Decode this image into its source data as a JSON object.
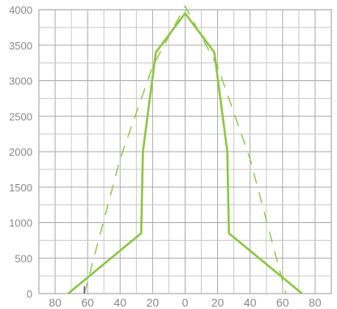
{
  "chart_data": {
    "type": "line",
    "title": "",
    "xlabel": "",
    "ylabel": "",
    "x_tick_labels": [
      "80",
      "60",
      "40",
      "20",
      "0",
      "20",
      "40",
      "60",
      "80"
    ],
    "y_tick_labels": [
      "0",
      "500",
      "1000",
      "1500",
      "2000",
      "2500",
      "3000",
      "3500",
      "4000"
    ],
    "xlim": [
      -90,
      90
    ],
    "ylim": [
      0,
      4000
    ],
    "grid": true,
    "legend": "none",
    "series": [
      {
        "style": "solid",
        "color": "#8cc63f",
        "x": [
          -72,
          -27,
          -26,
          -18,
          0,
          18,
          26,
          27,
          72
        ],
        "y": [
          0,
          850,
          2000,
          3400,
          3950,
          3400,
          2000,
          850,
          0
        ]
      },
      {
        "style": "dashed",
        "color": "#8cc63f",
        "x": [
          -62,
          -40,
          -20,
          0,
          20,
          40,
          62
        ],
        "y": [
          0,
          1900,
          3200,
          4050,
          3200,
          1900,
          0
        ]
      }
    ],
    "annotations": [
      {
        "x": -62,
        "y": 0,
        "color": "#6b3fa0",
        "shape": "tick"
      }
    ]
  }
}
